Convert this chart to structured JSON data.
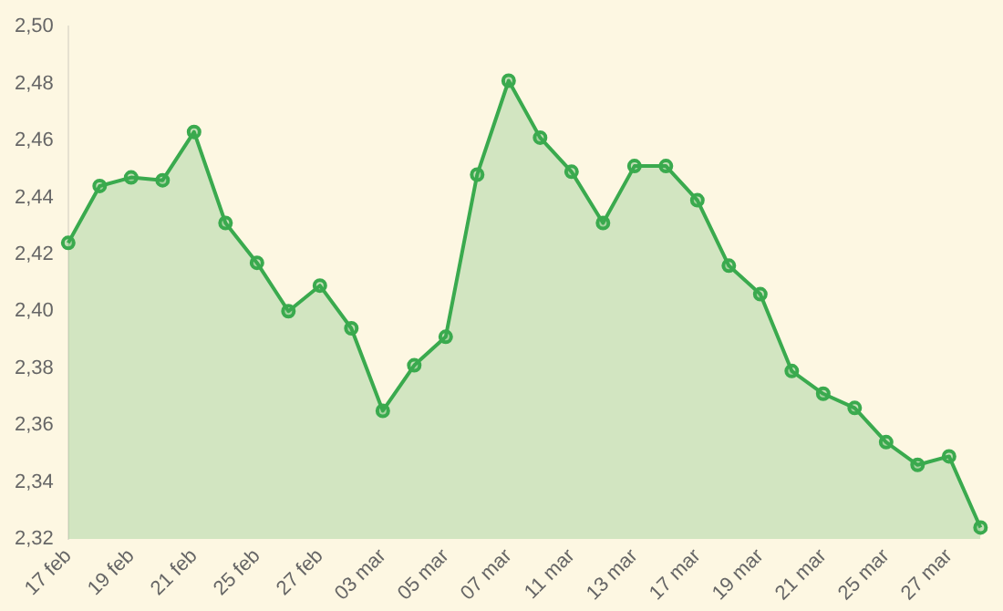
{
  "chart_data": {
    "type": "area",
    "categories": [
      "17 feb",
      null,
      "19 feb",
      null,
      "21 feb",
      null,
      "25 feb",
      null,
      "27 feb",
      null,
      "03 mar",
      null,
      "05 mar",
      null,
      "07 mar",
      null,
      "11 mar",
      null,
      "13 mar",
      null,
      "17 mar",
      null,
      "19 mar",
      null,
      "21 mar",
      null,
      "25 mar",
      null,
      "27 mar",
      null
    ],
    "series": [
      {
        "color": "#3aaa4e",
        "values": [
          2.424,
          2.444,
          2.447,
          2.446,
          2.463,
          2.431,
          2.417,
          2.4,
          2.409,
          2.394,
          2.365,
          2.381,
          2.391,
          2.448,
          2.481,
          2.461,
          2.449,
          2.431,
          2.451,
          2.451,
          2.439,
          2.416,
          2.406,
          2.379,
          2.371,
          2.366,
          2.354,
          2.346,
          2.349,
          2.324
        ]
      }
    ],
    "ylim": [
      2.32,
      2.5
    ],
    "yticks": [
      {
        "value": 2.32,
        "label": "2,32"
      },
      {
        "value": 2.34,
        "label": "2,34"
      },
      {
        "value": 2.36,
        "label": "2,36"
      },
      {
        "value": 2.38,
        "label": "2,38"
      },
      {
        "value": 2.4,
        "label": "2,40"
      },
      {
        "value": 2.42,
        "label": "2,42"
      },
      {
        "value": 2.44,
        "label": "2,44"
      },
      {
        "value": 2.46,
        "label": "2,46"
      },
      {
        "value": 2.48,
        "label": "2,48"
      },
      {
        "value": 2.5,
        "label": "2,50"
      }
    ],
    "grid": false,
    "legend": false,
    "marker": "circle",
    "line_style": "solid"
  }
}
